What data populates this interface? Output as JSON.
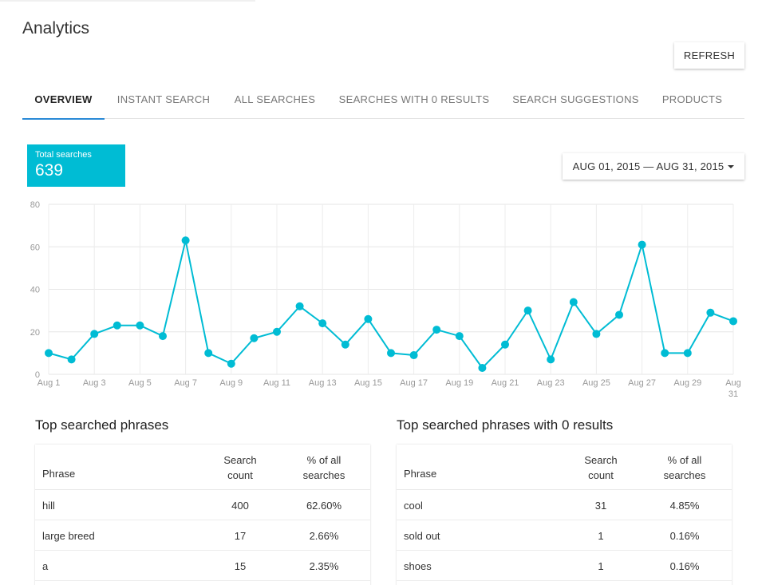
{
  "page": {
    "title": "Analytics",
    "refresh_label": "REFRESH"
  },
  "tabs": [
    {
      "label": "OVERVIEW",
      "active": true
    },
    {
      "label": "INSTANT SEARCH",
      "active": false
    },
    {
      "label": "ALL SEARCHES",
      "active": false
    },
    {
      "label": "SEARCHES WITH 0 RESULTS",
      "active": false
    },
    {
      "label": "SEARCH SUGGESTIONS",
      "active": false
    },
    {
      "label": "PRODUCTS",
      "active": false
    }
  ],
  "summary": {
    "label": "Total searches",
    "value": "639"
  },
  "date_range": {
    "label": "AUG 01, 2015 — AUG 31, 2015"
  },
  "colors": {
    "accent": "#00bcd4",
    "tab_underline": "#2a8ad6"
  },
  "icons": {
    "date_dropdown": "caret-down-icon"
  },
  "chart_data": {
    "type": "line",
    "x": [
      "Aug 1",
      "Aug 2",
      "Aug 3",
      "Aug 4",
      "Aug 5",
      "Aug 6",
      "Aug 7",
      "Aug 8",
      "Aug 9",
      "Aug 10",
      "Aug 11",
      "Aug 12",
      "Aug 13",
      "Aug 14",
      "Aug 15",
      "Aug 16",
      "Aug 17",
      "Aug 18",
      "Aug 19",
      "Aug 20",
      "Aug 21",
      "Aug 22",
      "Aug 23",
      "Aug 24",
      "Aug 25",
      "Aug 26",
      "Aug 27",
      "Aug 28",
      "Aug 29",
      "Aug 30",
      "Aug 31"
    ],
    "series": [
      {
        "values": [
          10,
          7,
          19,
          23,
          23,
          18,
          63,
          10,
          5,
          17,
          20,
          32,
          24,
          14,
          26,
          10,
          9,
          21,
          18,
          3,
          14,
          30,
          7,
          34,
          19,
          28,
          61,
          10,
          10,
          29,
          25
        ]
      }
    ],
    "x_tick_labels": [
      "Aug 1",
      "Aug 3",
      "Aug 5",
      "Aug 7",
      "Aug 9",
      "Aug 11",
      "Aug 13",
      "Aug 15",
      "Aug 17",
      "Aug 19",
      "Aug 21",
      "Aug 23",
      "Aug 25",
      "Aug 27",
      "Aug 29",
      "Aug 31"
    ],
    "y_ticks": [
      0,
      20,
      40,
      60,
      80
    ],
    "ylim": [
      0,
      80
    ],
    "grid": true,
    "legend": "none",
    "color": "#00bcd4"
  },
  "tables": {
    "top": {
      "title": "Top searched phrases",
      "headers": {
        "phrase": "Phrase",
        "count_line1": "Search",
        "count_line2": "count",
        "pct_line1": "% of all",
        "pct_line2": "searches"
      },
      "rows": [
        {
          "phrase": "hill",
          "count": "400",
          "pct": "62.60%"
        },
        {
          "phrase": "large breed",
          "count": "17",
          "pct": "2.66%"
        },
        {
          "phrase": "a",
          "count": "15",
          "pct": "2.35%"
        }
      ]
    },
    "zero": {
      "title": "Top searched phrases with 0 results",
      "headers": {
        "phrase": "Phrase",
        "count_line1": "Search",
        "count_line2": "count",
        "pct_line1": "% of all",
        "pct_line2": "searches"
      },
      "rows": [
        {
          "phrase": "cool",
          "count": "31",
          "pct": "4.85%"
        },
        {
          "phrase": "sold out",
          "count": "1",
          "pct": "0.16%"
        },
        {
          "phrase": "shoes",
          "count": "1",
          "pct": "0.16%"
        }
      ]
    }
  }
}
